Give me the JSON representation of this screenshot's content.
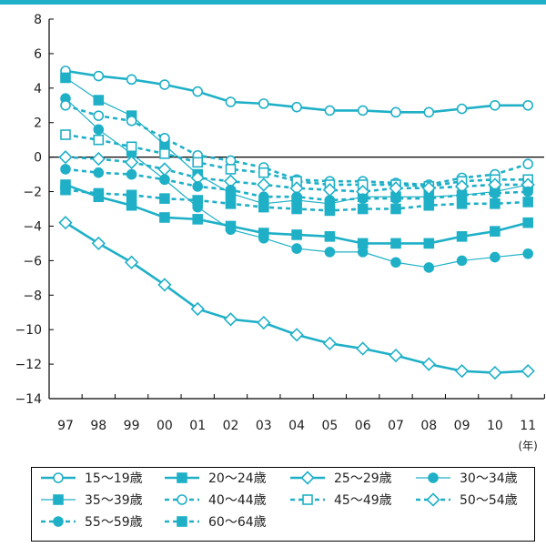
{
  "colors": {
    "series": "#1fb0c7",
    "accent_bar": "#1fb0c7",
    "axis": "#000000"
  },
  "chart_data": {
    "type": "line",
    "x": [
      "97",
      "98",
      "99",
      "00",
      "01",
      "02",
      "03",
      "04",
      "05",
      "06",
      "07",
      "08",
      "09",
      "10",
      "11"
    ],
    "x_unit": "(年)",
    "ylim": [
      -14,
      8
    ],
    "yticks": [
      "8",
      "6",
      "4",
      "2",
      "0",
      "−2",
      "−4",
      "−6",
      "−8",
      "−10",
      "−12",
      "−14"
    ],
    "ytick_values": [
      8,
      6,
      4,
      2,
      0,
      -2,
      -4,
      -6,
      -8,
      -10,
      -12,
      -14
    ],
    "grid": false,
    "legend_position": "bottom",
    "series": [
      {
        "name": "15〜19歳",
        "marker": "circle-open",
        "line": "solid",
        "weight": "bold",
        "values": [
          5.0,
          4.7,
          4.5,
          4.2,
          3.8,
          3.2,
          3.1,
          2.9,
          2.7,
          2.7,
          2.6,
          2.6,
          2.8,
          3.0,
          3.0
        ]
      },
      {
        "name": "20〜24歳",
        "marker": "square-filled",
        "line": "solid",
        "weight": "bold",
        "values": [
          -1.6,
          -2.3,
          -2.8,
          -3.5,
          -3.6,
          -4.0,
          -4.4,
          -4.5,
          -4.6,
          -5.0,
          -5.0,
          -5.0,
          -4.6,
          -4.3,
          -3.8
        ]
      },
      {
        "name": "25〜29歳",
        "marker": "diamond-open",
        "line": "solid",
        "weight": "bold",
        "values": [
          -3.8,
          -5.0,
          -6.1,
          -7.4,
          -8.8,
          -9.4,
          -9.6,
          -10.3,
          -10.8,
          -11.1,
          -11.5,
          -12.0,
          -12.4,
          -12.5,
          -12.4
        ]
      },
      {
        "name": "30〜34歳",
        "marker": "circle-filled",
        "line": "solid",
        "weight": "thin",
        "values": [
          3.4,
          1.6,
          0.2,
          -1.3,
          -2.9,
          -4.2,
          -4.7,
          -5.3,
          -5.5,
          -5.5,
          -6.1,
          -6.4,
          -6.0,
          -5.8,
          -5.6
        ]
      },
      {
        "name": "35〜39歳",
        "marker": "square-filled",
        "line": "solid",
        "weight": "thin",
        "values": [
          4.6,
          3.3,
          2.4,
          0.7,
          -1.0,
          -2.1,
          -2.7,
          -2.5,
          -2.7,
          -2.3,
          -2.3,
          -2.3,
          -2.2,
          -2.0,
          -1.6
        ]
      },
      {
        "name": "40〜44歳",
        "marker": "circle-open",
        "line": "dashed",
        "weight": "bold",
        "values": [
          3.0,
          2.4,
          2.1,
          1.1,
          0.1,
          -0.2,
          -0.6,
          -1.3,
          -1.4,
          -1.4,
          -1.5,
          -1.6,
          -1.2,
          -1.0,
          -0.4
        ]
      },
      {
        "name": "45〜49歳",
        "marker": "square-open",
        "line": "dashed",
        "weight": "bold",
        "values": [
          1.3,
          1.0,
          0.6,
          0.2,
          -0.3,
          -0.7,
          -0.9,
          -1.4,
          -1.6,
          -1.6,
          -1.6,
          -1.7,
          -1.4,
          -1.3,
          -1.3
        ]
      },
      {
        "name": "50〜54歳",
        "marker": "diamond-open",
        "line": "dashed",
        "weight": "bold",
        "values": [
          0.0,
          -0.1,
          -0.3,
          -0.7,
          -1.2,
          -1.4,
          -1.6,
          -1.8,
          -1.9,
          -2.0,
          -1.8,
          -1.8,
          -1.7,
          -1.6,
          -1.6
        ]
      },
      {
        "name": "55〜59歳",
        "marker": "circle-filled",
        "line": "dashed",
        "weight": "bold",
        "values": [
          -0.7,
          -0.9,
          -1.0,
          -1.3,
          -1.7,
          -1.9,
          -2.3,
          -2.3,
          -2.5,
          -2.4,
          -2.4,
          -2.4,
          -2.2,
          -2.1,
          -2.0
        ]
      },
      {
        "name": "60〜64歳",
        "marker": "square-filled",
        "line": "dashed",
        "weight": "bold",
        "values": [
          -1.9,
          -2.1,
          -2.2,
          -2.4,
          -2.5,
          -2.7,
          -2.9,
          -3.0,
          -3.1,
          -3.0,
          -3.0,
          -2.8,
          -2.7,
          -2.7,
          -2.6
        ]
      }
    ]
  }
}
